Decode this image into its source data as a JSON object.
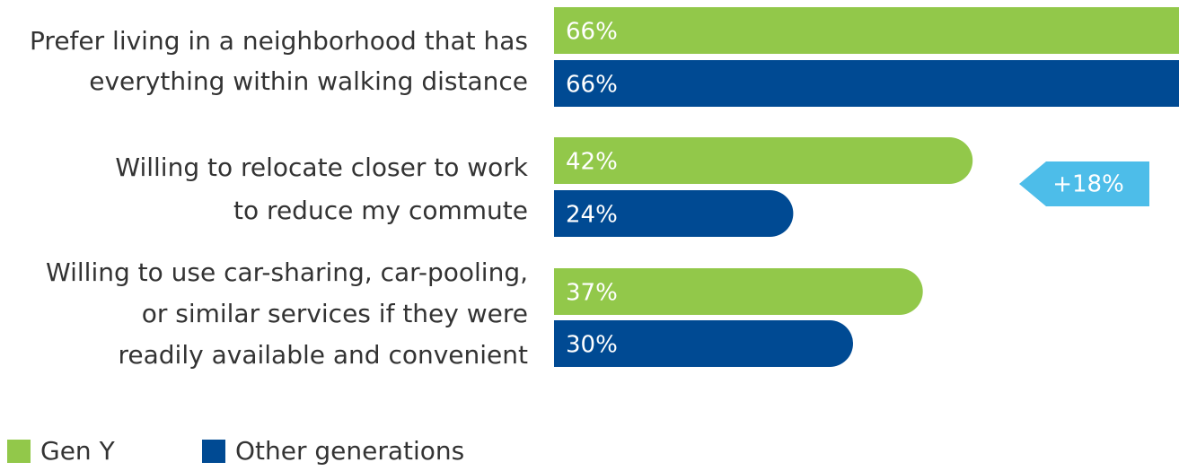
{
  "chart_data": {
    "type": "bar",
    "orientation": "horizontal",
    "categories": [
      [
        "Prefer living in a neighborhood that has",
        "everything within walking distance"
      ],
      [
        "Willing to relocate closer to work",
        "to reduce my commute"
      ],
      [
        "Willing to use car-sharing, car-pooling,",
        "or similar services if they were",
        "readily available and convenient"
      ]
    ],
    "series": [
      {
        "name": "Gen Y",
        "color": "#92c84a",
        "values": [
          66,
          42,
          37
        ],
        "value_labels": [
          "66%",
          "42%",
          "37%"
        ]
      },
      {
        "name": "Other generations",
        "color": "#004a93",
        "values": [
          66,
          24,
          30
        ],
        "value_labels": [
          "66%",
          "24%",
          "30%"
        ]
      }
    ],
    "annotation": "+18%",
    "annotation_color": "#4dbde9"
  }
}
